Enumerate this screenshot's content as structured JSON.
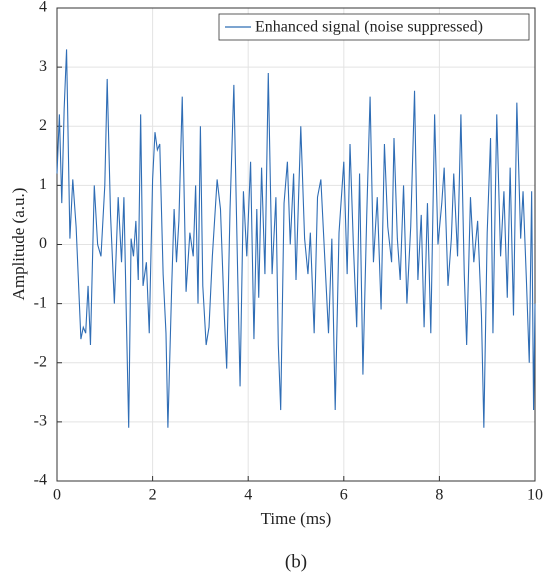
{
  "chart_data": {
    "type": "line",
    "xlabel": "Time (ms)",
    "ylabel": "Amplitude (a.u.)",
    "caption": "(b)",
    "legend": "upper right",
    "grid": true,
    "xlim": [
      0,
      10
    ],
    "xticks": [
      0,
      2,
      4,
      6,
      8,
      10
    ],
    "ylim": [
      -4,
      4
    ],
    "yticks": [
      -4,
      -3,
      -2,
      -1,
      0,
      1,
      2,
      3,
      4
    ],
    "x": [
      0,
      0.05,
      0.1,
      0.15,
      0.2,
      0.27,
      0.33,
      0.4,
      0.5,
      0.55,
      0.6,
      0.65,
      0.7,
      0.78,
      0.85,
      0.92,
      1.0,
      1.05,
      1.12,
      1.2,
      1.28,
      1.35,
      1.4,
      1.45,
      1.5,
      1.55,
      1.6,
      1.65,
      1.7,
      1.75,
      1.8,
      1.87,
      1.93,
      2.0,
      2.05,
      2.1,
      2.15,
      2.22,
      2.28,
      2.32,
      2.4,
      2.45,
      2.5,
      2.55,
      2.62,
      2.7,
      2.78,
      2.85,
      2.9,
      2.95,
      3.0,
      3.05,
      3.12,
      3.18,
      3.25,
      3.35,
      3.42,
      3.5,
      3.55,
      3.62,
      3.7,
      3.78,
      3.83,
      3.9,
      3.97,
      4.05,
      4.12,
      4.18,
      4.22,
      4.28,
      4.35,
      4.42,
      4.5,
      4.58,
      4.63,
      4.68,
      4.75,
      4.82,
      4.88,
      4.95,
      5.0,
      5.1,
      5.18,
      5.25,
      5.3,
      5.38,
      5.45,
      5.52,
      5.6,
      5.68,
      5.75,
      5.82,
      5.9,
      6.0,
      6.07,
      6.13,
      6.2,
      6.27,
      6.33,
      6.4,
      6.48,
      6.55,
      6.62,
      6.7,
      6.78,
      6.85,
      6.92,
      7.0,
      7.05,
      7.12,
      7.18,
      7.25,
      7.32,
      7.4,
      7.48,
      7.55,
      7.62,
      7.68,
      7.75,
      7.82,
      7.9,
      7.97,
      8.05,
      8.1,
      8.18,
      8.25,
      8.3,
      8.38,
      8.45,
      8.52,
      8.57,
      8.65,
      8.72,
      8.8,
      8.88,
      8.93,
      9.0,
      9.07,
      9.12,
      9.2,
      9.28,
      9.35,
      9.42,
      9.48,
      9.55,
      9.62,
      9.7,
      9.75,
      9.82,
      9.88,
      9.93,
      9.97,
      10.0
    ],
    "series": [
      {
        "name": "Enhanced signal (noise suppressed)",
        "color": "#2f6db5",
        "values": [
          1.2,
          2.2,
          0.7,
          2.3,
          3.3,
          0.1,
          1.1,
          0.3,
          -1.6,
          -1.4,
          -1.5,
          -0.7,
          -1.7,
          1.0,
          0,
          -0.2,
          1.0,
          2.8,
          0.5,
          -1.0,
          0.8,
          -0.3,
          0.8,
          -1.2,
          -3.1,
          0.1,
          -0.2,
          0.4,
          -0.6,
          2.2,
          -0.7,
          -0.3,
          -1.5,
          1.1,
          1.9,
          1.6,
          1.7,
          -0.5,
          -1.5,
          -3.1,
          -0.7,
          0.6,
          -0.3,
          0.4,
          2.5,
          -0.8,
          0.2,
          -0.2,
          1.0,
          -1.0,
          2.0,
          -0.7,
          -1.7,
          -1.4,
          -0.2,
          1.1,
          0.6,
          -1.2,
          -2.1,
          0.6,
          2.7,
          -0.5,
          -2.4,
          0.9,
          -0.2,
          1.4,
          -1.6,
          0.6,
          -0.9,
          1.3,
          -0.5,
          2.9,
          -0.5,
          0.8,
          -1.7,
          -2.8,
          0.7,
          1.4,
          0,
          1.2,
          -0.6,
          2.0,
          0.1,
          -0.5,
          0.2,
          -1.5,
          0.8,
          1.1,
          -0.2,
          -1.5,
          0.1,
          -2.8,
          0.2,
          1.4,
          -0.5,
          1.7,
          0,
          -1.4,
          1.2,
          -2.2,
          0.5,
          2.5,
          -0.3,
          0.8,
          -1.1,
          1.7,
          0.3,
          -0.3,
          1.8,
          0.1,
          -0.6,
          1.0,
          -1.0,
          0.3,
          2.6,
          -0.6,
          0.5,
          -1.4,
          0.7,
          -1.5,
          2.2,
          0,
          0.7,
          1.3,
          -0.7,
          0.1,
          1.2,
          -0.2,
          2.2,
          -0.5,
          -1.7,
          0.8,
          -0.3,
          0.4,
          -1.2,
          -3.1,
          0.2,
          1.8,
          -1.5,
          2.2,
          -0.2,
          0.9,
          -0.9,
          1.3,
          -1.2,
          2.4,
          0.1,
          0.9,
          -0.6,
          -2.0,
          0.9,
          -2.8,
          -1.0
        ]
      }
    ]
  }
}
